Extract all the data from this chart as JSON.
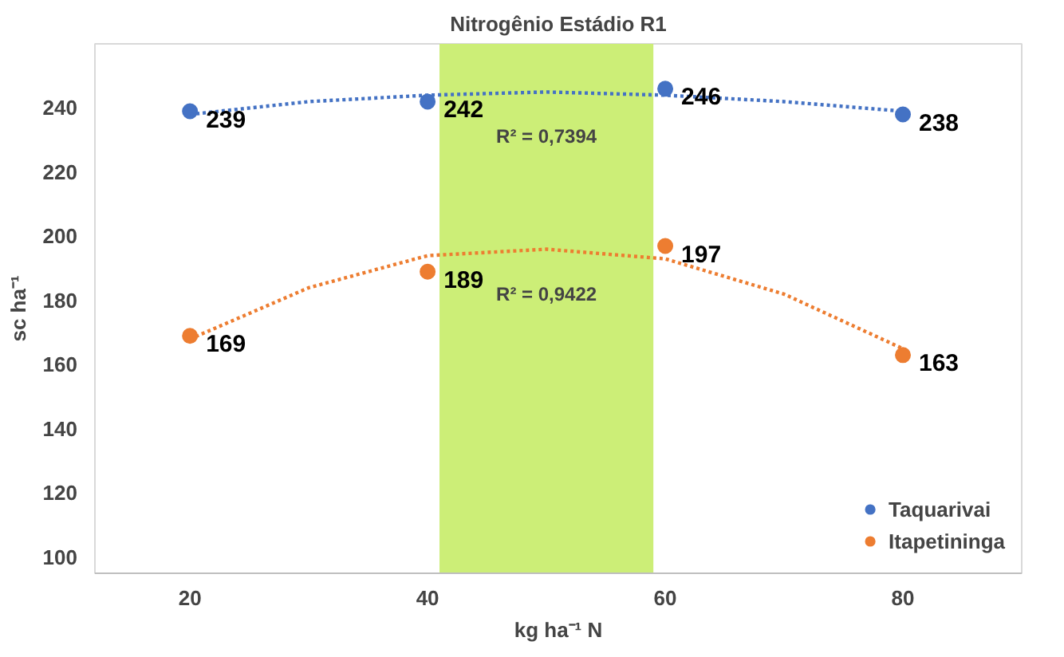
{
  "chart_data": {
    "type": "scatter",
    "title": "Nitrogênio Estádio R1",
    "xlabel": "kg ha⁻¹ N",
    "ylabel": "sc ha⁻¹",
    "x": [
      20,
      40,
      60,
      80
    ],
    "series": [
      {
        "name": "Taquarivai",
        "color": "#4472c4",
        "marker": "circle",
        "values": [
          239,
          242,
          246,
          238
        ],
        "value_labels": [
          "239",
          "242",
          "246",
          "238"
        ]
      },
      {
        "name": "Itapetininga",
        "color": "#ed7d31",
        "marker": "circle",
        "values": [
          169,
          189,
          197,
          163
        ],
        "value_labels": [
          "169",
          "189",
          "197",
          "163"
        ]
      },
      {
        "type": "line",
        "color": "#4472c4",
        "marker": "none",
        "line_style": "dotted",
        "x": [
          20,
          30,
          40,
          50,
          60,
          70,
          80
        ],
        "values": [
          238,
          242,
          244,
          245,
          244,
          242,
          239
        ]
      },
      {
        "type": "line",
        "color": "#ed7d31",
        "marker": "none",
        "line_style": "dotted",
        "x": [
          20,
          30,
          40,
          50,
          60,
          70,
          80
        ],
        "values": [
          168,
          184,
          194,
          196,
          193,
          182,
          165
        ]
      }
    ],
    "bands": [
      {
        "axis": "x",
        "from": 41,
        "to": 59,
        "color": "#ccee77"
      }
    ],
    "annotations": [
      "R² = 0,7394",
      "R² = 0,9422"
    ],
    "xlim": [
      12,
      90
    ],
    "xticks": [
      20,
      40,
      60,
      80
    ],
    "ylim": [
      95,
      260
    ],
    "yticks": [
      100,
      120,
      140,
      160,
      180,
      200,
      220,
      240
    ],
    "grid": false,
    "legend": "bottom right"
  }
}
